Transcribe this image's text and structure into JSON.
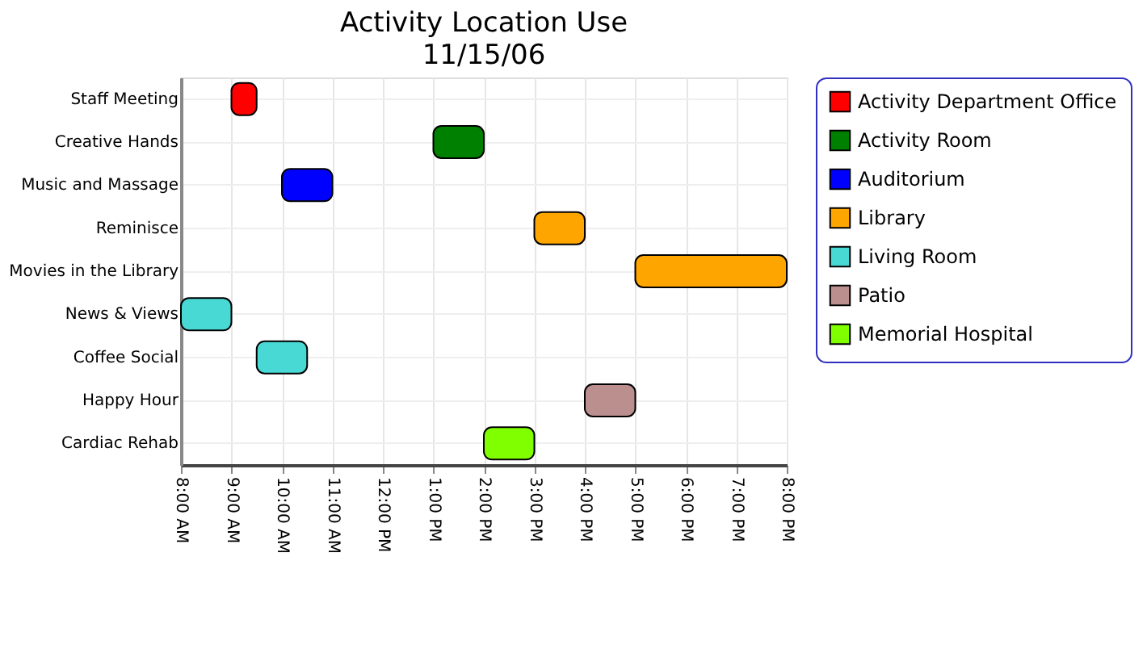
{
  "chart_data": {
    "type": "bar",
    "orientation": "horizontal",
    "title": "Activity Location Use",
    "subtitle": "11/15/06",
    "categories": [
      "Staff Meeting",
      "Creative Hands",
      "Music and Massage",
      "Reminisce",
      "Movies in the Library",
      "News & Views",
      "Coffee Social",
      "Happy Hour",
      "Cardiac Rehab"
    ],
    "series": [
      {
        "name": "Activity Department Office",
        "color": "#ff0000",
        "values": [
          0.5,
          null,
          null,
          null,
          null,
          null,
          null,
          null,
          null
        ],
        "base": [
          9,
          null,
          null,
          null,
          null,
          null,
          null,
          null,
          null
        ]
      },
      {
        "name": "Activity Room",
        "color": "#008000",
        "values": [
          null,
          1,
          null,
          null,
          null,
          null,
          null,
          null,
          null
        ],
        "base": [
          null,
          13,
          null,
          null,
          null,
          null,
          null,
          null,
          null
        ]
      },
      {
        "name": "Auditorium",
        "color": "#0000ff",
        "values": [
          null,
          null,
          1,
          null,
          null,
          null,
          null,
          null,
          null
        ],
        "base": [
          null,
          null,
          10,
          null,
          null,
          null,
          null,
          null,
          null
        ]
      },
      {
        "name": "Library",
        "color": "#ffa500",
        "values": [
          null,
          null,
          null,
          1,
          3,
          null,
          null,
          null,
          null
        ],
        "base": [
          null,
          null,
          null,
          15,
          17,
          null,
          null,
          null,
          null
        ]
      },
      {
        "name": "Living Room",
        "color": "#48d9d4",
        "values": [
          null,
          null,
          null,
          null,
          null,
          1,
          1,
          null,
          null
        ],
        "base": [
          null,
          null,
          null,
          null,
          null,
          8,
          9.5,
          null,
          null
        ]
      },
      {
        "name": "Patio",
        "color": "#bc8f8f",
        "values": [
          null,
          null,
          null,
          null,
          null,
          null,
          null,
          1,
          null
        ],
        "base": [
          null,
          null,
          null,
          null,
          null,
          null,
          null,
          16,
          null
        ]
      },
      {
        "name": "Memorial Hospital",
        "color": "#80ff00",
        "values": [
          null,
          null,
          null,
          null,
          null,
          null,
          null,
          null,
          1
        ],
        "base": [
          null,
          null,
          null,
          null,
          null,
          null,
          null,
          null,
          14
        ]
      }
    ],
    "xlim": [
      8,
      20
    ],
    "xticks": [
      {
        "value": 8,
        "label": "8:00 AM"
      },
      {
        "value": 9,
        "label": "9:00 AM"
      },
      {
        "value": 10,
        "label": "10:00 AM"
      },
      {
        "value": 11,
        "label": "11:00 AM"
      },
      {
        "value": 12,
        "label": "12:00 PM"
      },
      {
        "value": 13,
        "label": "1:00 PM"
      },
      {
        "value": 14,
        "label": "2:00 PM"
      },
      {
        "value": 15,
        "label": "3:00 PM"
      },
      {
        "value": 16,
        "label": "4:00 PM"
      },
      {
        "value": 17,
        "label": "5:00 PM"
      },
      {
        "value": 18,
        "label": "6:00 PM"
      },
      {
        "value": 19,
        "label": "7:00 PM"
      },
      {
        "value": 20,
        "label": "8:00 PM"
      }
    ],
    "grid": true,
    "legend": "right"
  }
}
